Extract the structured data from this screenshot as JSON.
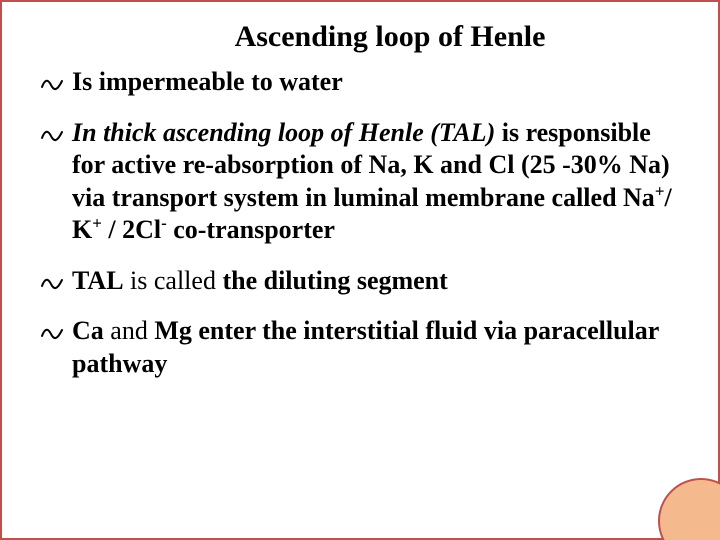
{
  "slide": {
    "title": "Ascending loop of Henle",
    "background_color": "#ffffff",
    "border_color": "#c0504d",
    "accent_circle_fill": "#f5b98e",
    "text_color": "#000000",
    "title_fontsize": 30,
    "body_fontsize": 26,
    "bullets": [
      {
        "runs": [
          {
            "text": "Is ",
            "bold": true
          },
          {
            "text": "impermeable",
            "bold": true
          },
          {
            "text": " to water",
            "bold": true
          }
        ]
      },
      {
        "runs": [
          {
            "text": "In thick ascending loop of Henle (TAL)",
            "bold": true,
            "italic": true
          },
          {
            "text": " is responsible for active re-absorption of Na, K and Cl (25 -30% Na) via transport system in luminal membrane called ",
            "bold": true
          },
          {
            "text": "Na",
            "bold": true
          },
          {
            "text": "+",
            "bold": true,
            "sup": true
          },
          {
            "text": "/ K",
            "bold": true
          },
          {
            "text": "+",
            "bold": true,
            "sup": true
          },
          {
            "text": " / 2Cl",
            "bold": true
          },
          {
            "text": "-",
            "bold": true,
            "sup": true
          },
          {
            "text": " co-transporter",
            "bold": true
          }
        ]
      },
      {
        "runs": [
          {
            "text": "TAL",
            "bold": true
          },
          {
            "text": " is called ",
            "bold": false
          },
          {
            "text": "the diluting segment",
            "bold": true
          }
        ]
      },
      {
        "runs": [
          {
            "text": "Ca",
            "bold": true
          },
          {
            "text": " and ",
            "bold": false
          },
          {
            "text": "Mg enter the interstitial fluid via paracellular pathway",
            "bold": true
          }
        ]
      }
    ]
  }
}
